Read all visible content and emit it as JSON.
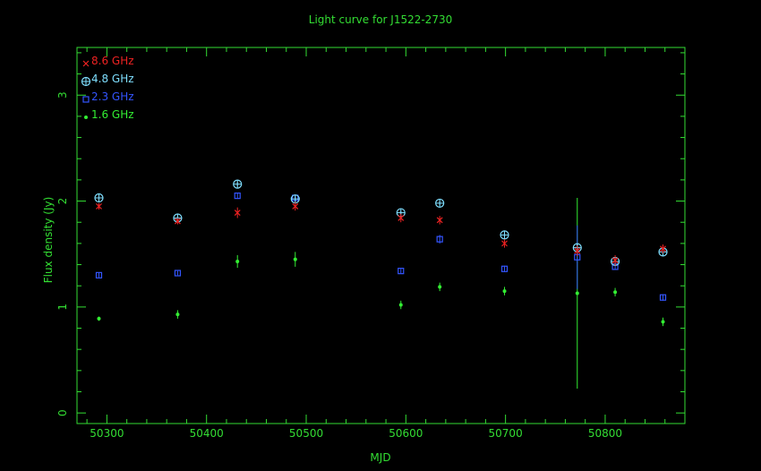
{
  "chart_data": {
    "type": "scatter",
    "title": "Light curve for J1522-2730",
    "xlabel": "MJD",
    "ylabel": "Flux density (Jy)",
    "xlim": [
      50270,
      50880
    ],
    "ylim": [
      -0.1,
      3.45
    ],
    "x_ticks": [
      50300,
      50400,
      50500,
      50600,
      50700,
      50800
    ],
    "y_ticks": [
      0,
      1,
      2,
      3
    ],
    "grid": false,
    "legend_position": "top-left",
    "colors": {
      "background": "#000000",
      "axes": "#33dd33"
    },
    "series": [
      {
        "name": "8.6 GHz",
        "marker": "x",
        "color": "#ee2222",
        "points": [
          {
            "x": 50292,
            "y": 1.95,
            "err": 0.03
          },
          {
            "x": 50371,
            "y": 1.81,
            "err": 0.03
          },
          {
            "x": 50431,
            "y": 1.89,
            "err": 0.05
          },
          {
            "x": 50489,
            "y": 1.95,
            "err": 0.04
          },
          {
            "x": 50595,
            "y": 1.84,
            "err": 0.04
          },
          {
            "x": 50634,
            "y": 1.82,
            "err": 0.04
          },
          {
            "x": 50699,
            "y": 1.6,
            "err": 0.04
          },
          {
            "x": 50772,
            "y": 1.53,
            "err": 0.05
          },
          {
            "x": 50810,
            "y": 1.44,
            "err": 0.05
          },
          {
            "x": 50858,
            "y": 1.55,
            "err": 0.04
          }
        ]
      },
      {
        "name": "4.8 GHz",
        "marker": "circle-plus",
        "color": "#7fdfff",
        "points": [
          {
            "x": 50292,
            "y": 2.03,
            "err": 0.02
          },
          {
            "x": 50371,
            "y": 1.84,
            "err": 0.02
          },
          {
            "x": 50431,
            "y": 2.16,
            "err": 0.02
          },
          {
            "x": 50489,
            "y": 2.02,
            "err": 0.02
          },
          {
            "x": 50595,
            "y": 1.89,
            "err": 0.02
          },
          {
            "x": 50634,
            "y": 1.98,
            "err": 0.02
          },
          {
            "x": 50699,
            "y": 1.68,
            "err": 0.02
          },
          {
            "x": 50772,
            "y": 1.56,
            "err": 0.04
          },
          {
            "x": 50810,
            "y": 1.43,
            "err": 0.02
          },
          {
            "x": 50858,
            "y": 1.52,
            "err": 0.02
          }
        ]
      },
      {
        "name": "2.3 GHz",
        "marker": "square",
        "color": "#3355ff",
        "points": [
          {
            "x": 50292,
            "y": 1.3,
            "err": 0.02
          },
          {
            "x": 50371,
            "y": 1.32,
            "err": 0.02
          },
          {
            "x": 50431,
            "y": 2.05,
            "err": 0.03
          },
          {
            "x": 50489,
            "y": 2.03,
            "err": 0.03
          },
          {
            "x": 50595,
            "y": 1.34,
            "err": 0.02
          },
          {
            "x": 50634,
            "y": 1.64,
            "err": 0.04
          },
          {
            "x": 50699,
            "y": 1.36,
            "err": 0.03
          },
          {
            "x": 50772,
            "y": 1.47,
            "err": 0.3
          },
          {
            "x": 50810,
            "y": 1.38,
            "err": 0.03
          },
          {
            "x": 50858,
            "y": 1.09,
            "err": 0.03
          }
        ]
      },
      {
        "name": "1.6 GHz",
        "marker": "dot",
        "color": "#33ee33",
        "points": [
          {
            "x": 50292,
            "y": 0.89,
            "err": 0.02
          },
          {
            "x": 50371,
            "y": 0.93,
            "err": 0.04
          },
          {
            "x": 50431,
            "y": 1.43,
            "err": 0.06
          },
          {
            "x": 50489,
            "y": 1.45,
            "err": 0.07
          },
          {
            "x": 50595,
            "y": 1.02,
            "err": 0.04
          },
          {
            "x": 50634,
            "y": 1.19,
            "err": 0.04
          },
          {
            "x": 50699,
            "y": 1.15,
            "err": 0.04
          },
          {
            "x": 50772,
            "y": 1.13,
            "err": 0.9
          },
          {
            "x": 50810,
            "y": 1.14,
            "err": 0.04
          },
          {
            "x": 50858,
            "y": 0.86,
            "err": 0.04
          }
        ]
      }
    ]
  }
}
